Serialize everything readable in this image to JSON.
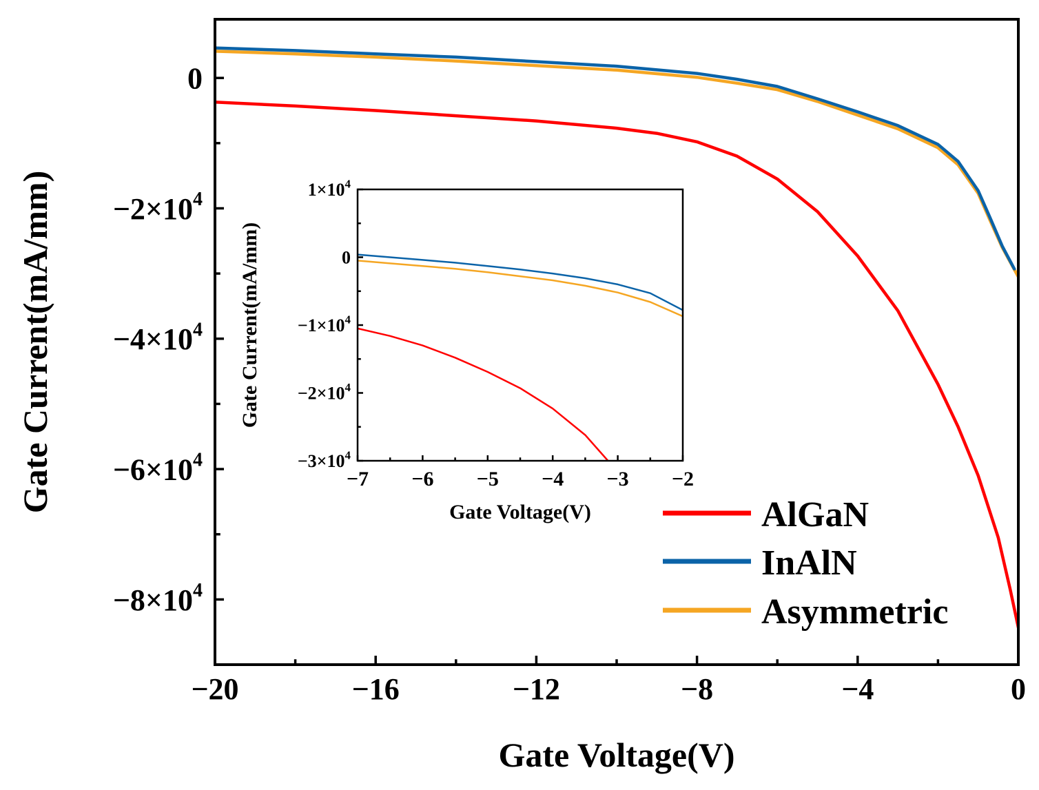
{
  "chart_data": [
    {
      "id": "main",
      "type": "line",
      "title": "",
      "xlabel": "Gate Voltage(V)",
      "ylabel": "Gate Current(mA/mm)",
      "xlim": [
        -20,
        0
      ],
      "ylim": [
        -90000,
        9000
      ],
      "grid": false,
      "x_ticks": [
        {
          "value": -20,
          "label": "−20"
        },
        {
          "value": -16,
          "label": "−16"
        },
        {
          "value": -12,
          "label": "−12"
        },
        {
          "value": -8,
          "label": "−8"
        },
        {
          "value": -4,
          "label": "−4"
        },
        {
          "value": 0,
          "label": "0"
        }
      ],
      "y_ticks": [
        {
          "value": 0,
          "base": "0",
          "exp": ""
        },
        {
          "value": -20000,
          "base": "−2×10",
          "exp": "4"
        },
        {
          "value": -40000,
          "base": "−4×10",
          "exp": "4"
        },
        {
          "value": -60000,
          "base": "−6×10",
          "exp": "4"
        },
        {
          "value": -80000,
          "base": "−8×10",
          "exp": "4"
        }
      ],
      "legend_position": "bottom-right",
      "series": [
        {
          "name": "AlGaN",
          "color": "#ff0000",
          "x": [
            -20,
            -18,
            -16,
            -14,
            -12,
            -10,
            -9,
            -8,
            -7,
            -6,
            -5,
            -4,
            -3,
            -2,
            -1.5,
            -1,
            -0.5,
            -0.2,
            0
          ],
          "y": [
            -3700,
            -4300,
            -5000,
            -5800,
            -6600,
            -7700,
            -8500,
            -9800,
            -12000,
            -15500,
            -20500,
            -27300,
            -35700,
            -47000,
            -53500,
            -61000,
            -70500,
            -78500,
            -84300
          ]
        },
        {
          "name": "InAlN",
          "color": "#0b63a8",
          "x": [
            -20,
            -18,
            -16,
            -14,
            -12,
            -10,
            -8,
            -7,
            -6,
            -5,
            -4,
            -3,
            -2,
            -1.5,
            -1,
            -0.7,
            -0.4,
            -0.1
          ],
          "y": [
            4600,
            4200,
            3700,
            3200,
            2500,
            1800,
            700,
            -200,
            -1300,
            -3200,
            -5200,
            -7300,
            -10200,
            -12800,
            -17300,
            -21500,
            -25800,
            -29300
          ]
        },
        {
          "name": "Asymmetric",
          "color": "#f5a623",
          "x": [
            -20,
            -18,
            -16,
            -14,
            -12,
            -10,
            -8,
            -7,
            -6,
            -5,
            -4,
            -3,
            -2,
            -1.5,
            -1,
            -0.7,
            -0.4,
            0
          ],
          "y": [
            4100,
            3700,
            3200,
            2600,
            1900,
            1200,
            100,
            -800,
            -1800,
            -3600,
            -5700,
            -7800,
            -10700,
            -13300,
            -17700,
            -21900,
            -26000,
            -30500
          ]
        }
      ]
    },
    {
      "id": "inset",
      "type": "line",
      "title": "",
      "xlabel": "Gate Voltage(V)",
      "ylabel": "Gate Current(mA/mm)",
      "xlim": [
        -7,
        -2
      ],
      "ylim": [
        -30000,
        10000
      ],
      "grid": false,
      "x_ticks": [
        {
          "value": -7,
          "label": "−7"
        },
        {
          "value": -6,
          "label": "−6"
        },
        {
          "value": -5,
          "label": "−5"
        },
        {
          "value": -4,
          "label": "−4"
        },
        {
          "value": -3,
          "label": "−3"
        },
        {
          "value": -2,
          "label": "−2"
        }
      ],
      "y_ticks": [
        {
          "value": 10000,
          "base": "1×10",
          "exp": "4"
        },
        {
          "value": 0,
          "base": "0",
          "exp": ""
        },
        {
          "value": -10000,
          "base": "−1×10",
          "exp": "4"
        },
        {
          "value": -20000,
          "base": "−2×10",
          "exp": "4"
        },
        {
          "value": -30000,
          "base": "−3×10",
          "exp": "4"
        }
      ],
      "series": [
        {
          "name": "AlGaN",
          "color": "#ff0000",
          "x": [
            -7,
            -6.5,
            -6,
            -5.5,
            -5,
            -4.5,
            -4,
            -3.5,
            -3.15
          ],
          "y": [
            -10500,
            -11600,
            -13000,
            -14800,
            -16900,
            -19300,
            -22300,
            -26200,
            -30000
          ]
        },
        {
          "name": "InAlN",
          "color": "#0b63a8",
          "x": [
            -7,
            -6.5,
            -6,
            -5.5,
            -5,
            -4.5,
            -4,
            -3.5,
            -3,
            -2.5,
            -2
          ],
          "y": [
            400,
            0,
            -400,
            -800,
            -1300,
            -1800,
            -2400,
            -3100,
            -4000,
            -5300,
            -7800
          ]
        },
        {
          "name": "Asymmetric",
          "color": "#f5a623",
          "x": [
            -7,
            -6.5,
            -6,
            -5.5,
            -5,
            -4.5,
            -4,
            -3.5,
            -3,
            -2.5,
            -2
          ],
          "y": [
            -500,
            -900,
            -1300,
            -1700,
            -2200,
            -2800,
            -3400,
            -4200,
            -5200,
            -6600,
            -8700
          ]
        }
      ]
    }
  ]
}
